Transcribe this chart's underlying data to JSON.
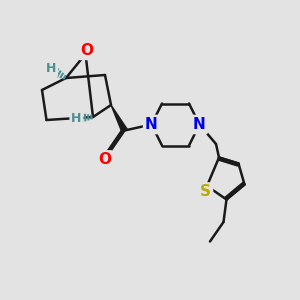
{
  "bg_color": "#e3e3e3",
  "atom_colors": {
    "O": "#ff0000",
    "N": "#0000ee",
    "S": "#bbaa00",
    "H_stereo": "#4a9090",
    "C": "#1a1a1a"
  },
  "bond_color": "#1a1a1a",
  "bond_width": 1.8,
  "font_size_atom": 11,
  "fig_w": 3.0,
  "fig_h": 3.0,
  "dpi": 100
}
